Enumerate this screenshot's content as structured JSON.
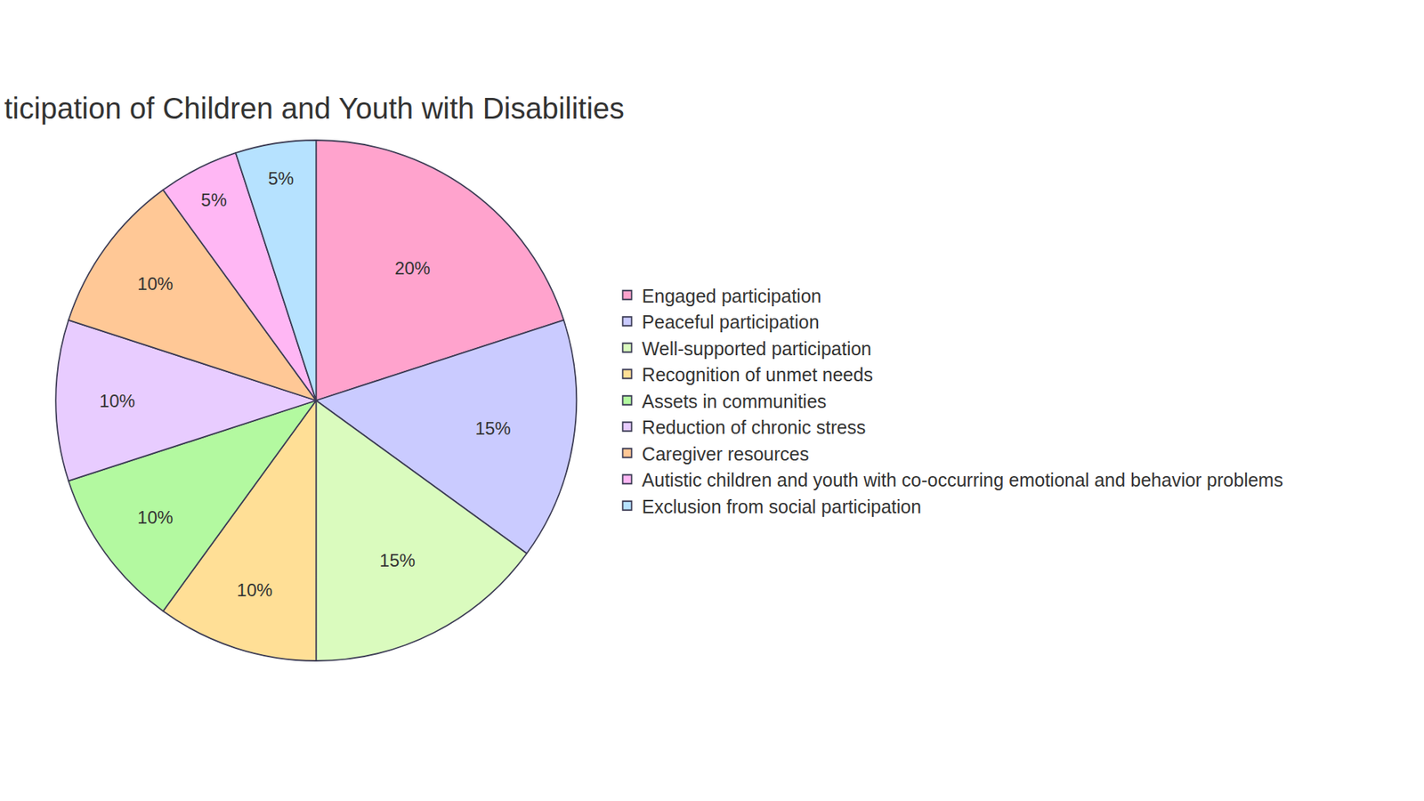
{
  "chart_data": {
    "type": "pie",
    "title": "ticipation of Children and Youth with Disabilities",
    "categories": [
      "Engaged participation",
      "Peaceful participation",
      "Well-supported participation",
      "Recognition of unmet needs",
      "Assets in communities",
      "Reduction of chronic stress",
      "Caregiver resources",
      "Autistic children and youth with co-occurring emotional and behavior problems",
      "Exclusion from social participation"
    ],
    "values": [
      20,
      15,
      15,
      10,
      10,
      10,
      10,
      5,
      5
    ],
    "value_labels": [
      "20%",
      "15%",
      "15%",
      "10%",
      "10%",
      "10%",
      "10%",
      "5%",
      "5%"
    ],
    "colors": [
      "#ffa3cd",
      "#cacbff",
      "#dafbbe",
      "#ffdf96",
      "#b3f9a0",
      "#e8ccff",
      "#ffc896",
      "#ffb7f4",
      "#b6e2ff"
    ],
    "data_labels": true,
    "legend": "right"
  }
}
